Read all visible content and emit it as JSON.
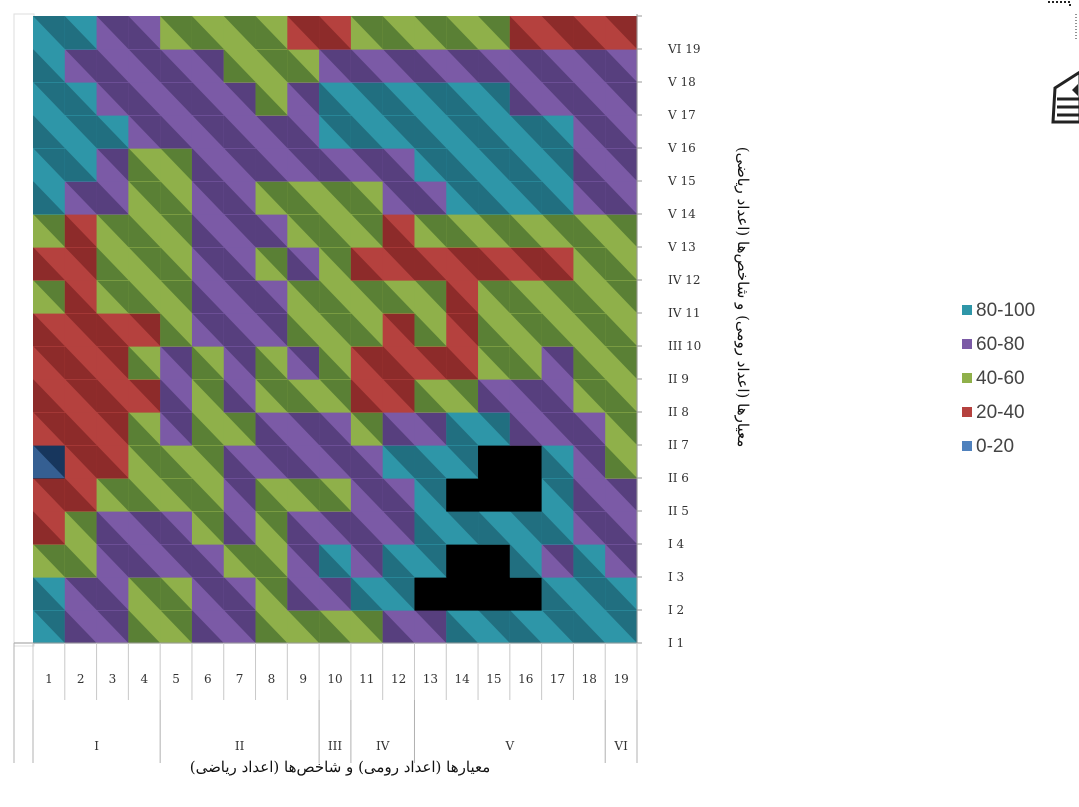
{
  "chart_data": {
    "type": "heatmap",
    "xlabel": "معیارها (اعداد رومی) و شاخص‌ها (اعداد ریاضی)",
    "ylabel": "معیارها (اعداد رومی) و شاخص‌ها (اعداد ریاضی)",
    "x_indices": [
      "1",
      "2",
      "3",
      "4",
      "5",
      "6",
      "7",
      "8",
      "9",
      "10",
      "11",
      "12",
      "13",
      "14",
      "15",
      "16",
      "17",
      "18",
      "19"
    ],
    "x_groups": [
      {
        "label": "I",
        "span": [
          1,
          4
        ]
      },
      {
        "label": "II",
        "span": [
          5,
          9
        ]
      },
      {
        "label": "III",
        "span": [
          10,
          10
        ]
      },
      {
        "label": "IV",
        "span": [
          11,
          12
        ]
      },
      {
        "label": "V",
        "span": [
          13,
          18
        ]
      },
      {
        "label": "VI",
        "span": [
          19,
          19
        ]
      }
    ],
    "y_labels": [
      "I 1",
      "I 2",
      "I 3",
      "I 4",
      "II 5",
      "II 6",
      "II 7",
      "II 8",
      "II 9",
      "III 10",
      "IV 11",
      "IV 12",
      "V 13",
      "V 14",
      "V 15",
      "V 16",
      "V 17",
      "V 18",
      "VI 19"
    ],
    "legend": [
      {
        "label": "80-100",
        "color": "#2e96a8"
      },
      {
        "label": "60-80",
        "color": "#7b5aa6"
      },
      {
        "label": "40-60",
        "color": "#8fb04a"
      },
      {
        "label": "20-40",
        "color": "#b5413e"
      },
      {
        "label": "0-20",
        "color": "#4f81bd"
      }
    ],
    "palette": [
      "#17365d",
      "#4f81bd",
      "#b5413e",
      "#6b1a1a",
      "#8fb04a",
      "#2f5a24",
      "#7b5aa6",
      "#3b2a5c",
      "#2e96a8",
      "#17505f"
    ],
    "grid": [
      [
        4,
        3,
        3,
        2,
        2,
        3,
        3,
        2,
        2,
        2,
        2,
        3,
        3,
        4,
        4,
        4,
        4,
        4,
        4
      ],
      [
        4,
        3,
        3,
        2,
        2,
        3,
        3,
        2,
        3,
        3,
        4,
        4,
        5,
        5,
        5,
        5,
        4,
        4,
        4
      ],
      [
        2,
        2,
        3,
        3,
        3,
        3,
        2,
        2,
        3,
        4,
        3,
        4,
        4,
        5,
        5,
        4,
        3,
        4,
        3
      ],
      [
        1,
        2,
        3,
        3,
        3,
        2,
        3,
        2,
        3,
        3,
        3,
        3,
        4,
        4,
        4,
        4,
        4,
        3,
        3
      ],
      [
        1,
        1,
        2,
        2,
        2,
        2,
        3,
        2,
        2,
        2,
        3,
        3,
        4,
        5,
        5,
        5,
        4,
        3,
        3
      ],
      [
        0,
        1,
        1,
        2,
        2,
        2,
        3,
        3,
        3,
        3,
        3,
        4,
        4,
        4,
        5,
        5,
        4,
        3,
        2
      ],
      [
        1,
        1,
        1,
        2,
        3,
        2,
        2,
        3,
        3,
        3,
        2,
        3,
        3,
        4,
        4,
        3,
        3,
        3,
        2
      ],
      [
        1,
        1,
        1,
        1,
        3,
        2,
        3,
        2,
        2,
        2,
        1,
        1,
        2,
        2,
        3,
        3,
        3,
        2,
        2
      ],
      [
        1,
        1,
        1,
        2,
        3,
        2,
        3,
        2,
        3,
        2,
        1,
        1,
        1,
        1,
        2,
        2,
        3,
        2,
        2
      ],
      [
        1,
        1,
        1,
        1,
        2,
        3,
        3,
        3,
        2,
        2,
        2,
        1,
        2,
        1,
        2,
        2,
        2,
        2,
        2
      ],
      [
        2,
        1,
        2,
        2,
        2,
        3,
        3,
        3,
        2,
        2,
        2,
        2,
        2,
        1,
        2,
        2,
        2,
        2,
        2
      ],
      [
        1,
        1,
        2,
        2,
        2,
        3,
        3,
        2,
        3,
        2,
        1,
        1,
        1,
        1,
        1,
        1,
        1,
        2,
        2
      ],
      [
        2,
        1,
        2,
        2,
        2,
        3,
        3,
        3,
        2,
        2,
        2,
        1,
        2,
        2,
        2,
        2,
        2,
        2,
        2
      ],
      [
        4,
        3,
        3,
        2,
        2,
        3,
        3,
        2,
        2,
        2,
        2,
        3,
        3,
        4,
        4,
        4,
        4,
        3,
        3
      ],
      [
        4,
        4,
        3,
        2,
        2,
        3,
        3,
        3,
        3,
        3,
        3,
        3,
        4,
        4,
        4,
        4,
        4,
        3,
        3
      ],
      [
        4,
        4,
        4,
        3,
        3,
        3,
        3,
        3,
        3,
        4,
        4,
        4,
        4,
        4,
        4,
        4,
        4,
        3,
        3
      ],
      [
        4,
        4,
        3,
        3,
        3,
        3,
        3,
        2,
        3,
        4,
        4,
        4,
        4,
        4,
        4,
        3,
        3,
        3,
        3
      ],
      [
        4,
        3,
        3,
        3,
        3,
        3,
        2,
        2,
        2,
        3,
        3,
        3,
        3,
        3,
        3,
        3,
        3,
        3,
        3
      ],
      [
        4,
        4,
        3,
        3,
        2,
        2,
        2,
        2,
        1,
        1,
        2,
        2,
        2,
        2,
        2,
        1,
        1,
        1,
        1
      ]
    ]
  }
}
